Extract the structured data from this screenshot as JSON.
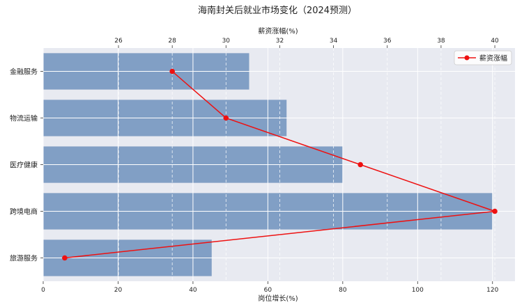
{
  "chart_data": {
    "type": "bar",
    "orientation": "horizontal",
    "title": "海南封关后就业市场变化（2024预测）",
    "categories": [
      "金融服务",
      "物流运输",
      "医疗健康",
      "跨境电商",
      "旅游服务"
    ],
    "bar_series": {
      "axis": "bottom",
      "xlabel": "岗位增长(%)",
      "values": [
        55,
        65,
        80,
        120,
        45
      ],
      "color": "#7b9bc2",
      "xlim": [
        0,
        126
      ],
      "ticks": [
        0,
        20,
        40,
        60,
        80,
        100,
        120
      ]
    },
    "line_series": {
      "name": "薪资涨幅",
      "axis": "top",
      "xlabel": "薪资涨幅(%)",
      "values": [
        28,
        30,
        35,
        40,
        24
      ],
      "color": "#ee1111",
      "xlim": [
        23.2,
        40.75
      ],
      "ticks": [
        26,
        28,
        30,
        32,
        34,
        36,
        38,
        40
      ]
    },
    "grid": true,
    "background": "#e8eaf1",
    "legend": {
      "position": "top-right",
      "entries": [
        "薪资涨幅"
      ]
    }
  }
}
